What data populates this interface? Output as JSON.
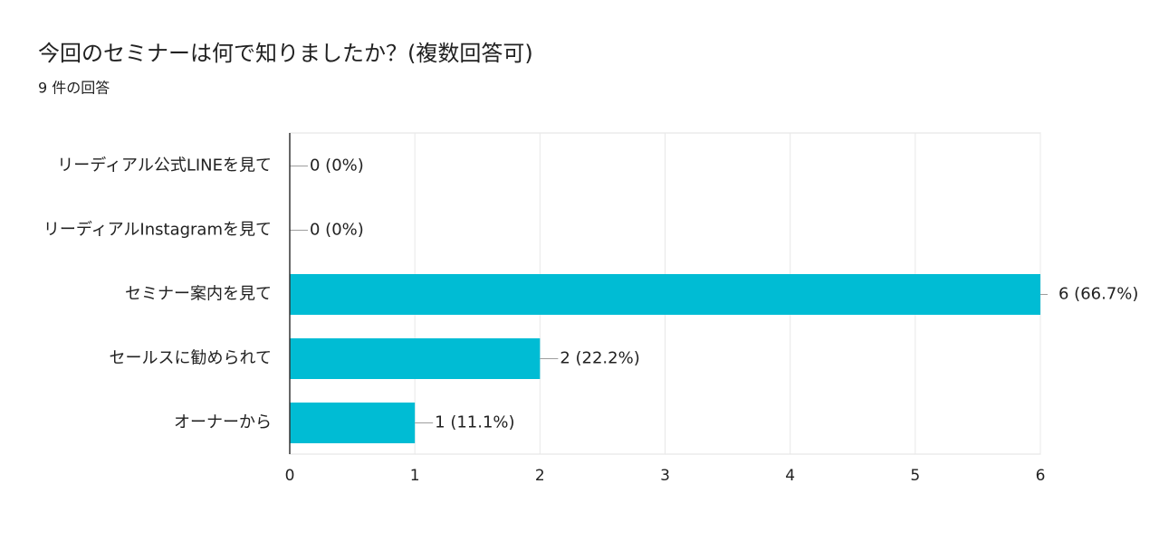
{
  "chart_data": {
    "type": "bar",
    "orientation": "horizontal",
    "title": "今回のセミナーは何で知りましたか？(複数回答可)",
    "subtitle": "9 件の回答",
    "categories": [
      "リーディアル公式LINEを見て",
      "リーディアルInstagramを見て",
      "セミナー案内を見て",
      "セールスに勧められて",
      "オーナーから"
    ],
    "values": [
      0,
      0,
      6,
      2,
      1
    ],
    "value_labels": [
      "0 (0%)",
      "0 (0%)",
      "6 (66.7%)",
      "2 (22.2%)",
      "1 (11.1%)"
    ],
    "color": "#00bcd4",
    "xlim": [
      0,
      6
    ],
    "xticks": [
      0,
      1,
      2,
      3,
      4,
      5,
      6
    ],
    "grid": true
  }
}
